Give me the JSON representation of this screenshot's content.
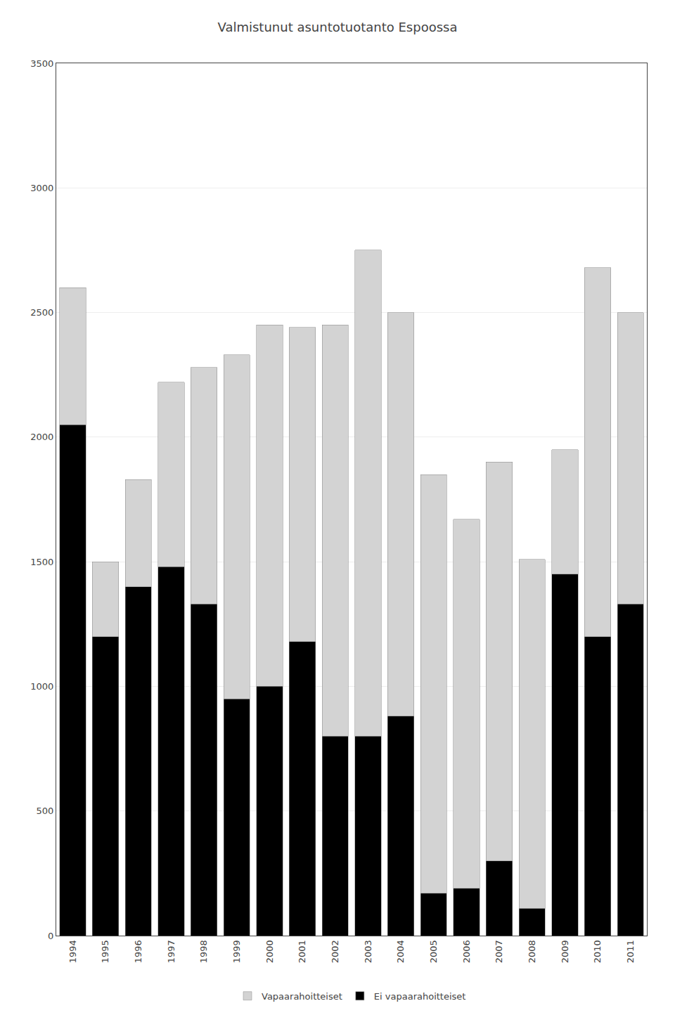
{
  "chart_data": {
    "type": "bar",
    "title": "Valmistunut asuntotuotanto Espoossa",
    "categories": [
      "1994",
      "1995",
      "1996",
      "1997",
      "1998",
      "1999",
      "2000",
      "2001",
      "2002",
      "2003",
      "2004",
      "2005",
      "2006",
      "2007",
      "2008",
      "2009",
      "2010",
      "2011"
    ],
    "series": [
      {
        "name": "Ei vapaarahoitteiset",
        "color": "#000000",
        "values": [
          2050,
          1200,
          1400,
          1480,
          1330,
          950,
          1000,
          1180,
          800,
          800,
          880,
          170,
          190,
          300,
          110,
          1450,
          1200,
          1330
        ]
      },
      {
        "name": "Vapaarahoitteiset",
        "color": "#d3d3d3",
        "values": [
          550,
          300,
          430,
          740,
          950,
          1380,
          1450,
          1260,
          1650,
          1950,
          1620,
          1680,
          1480,
          1600,
          1400,
          500,
          1480,
          1170
        ]
      }
    ],
    "stacked": true,
    "ylim": [
      0,
      3500
    ],
    "yticks": [
      0,
      500,
      1000,
      1500,
      2000,
      2500,
      3000,
      3500
    ],
    "grid": true,
    "legend": "bottom"
  }
}
